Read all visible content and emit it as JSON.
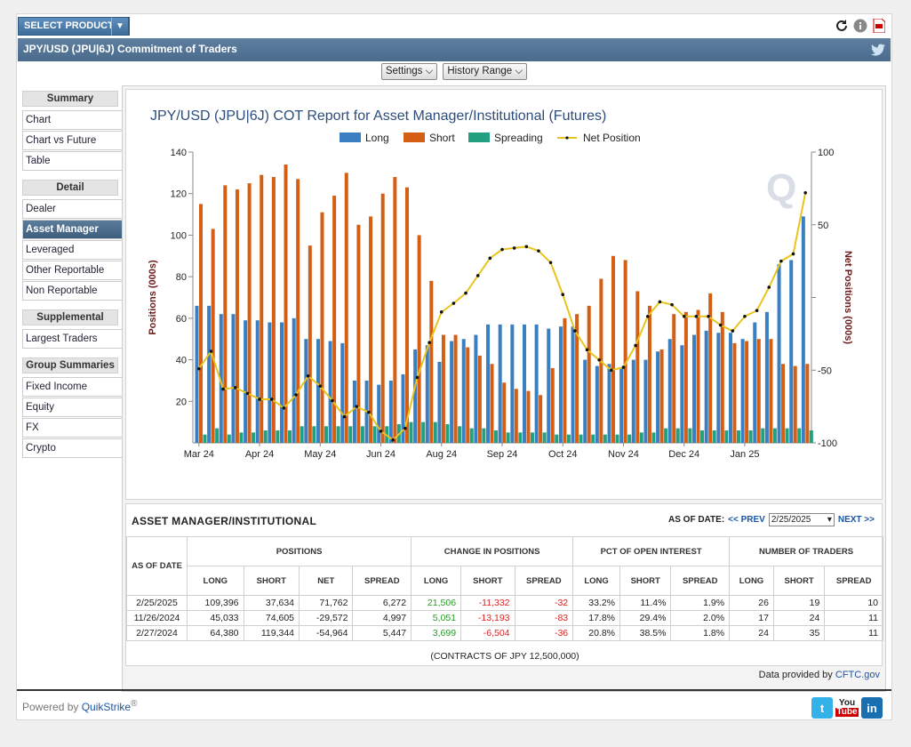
{
  "header": {
    "select_product": "SELECT PRODUCT",
    "page_title": "JPY/USD (JPU|6J) Commitment of Traders"
  },
  "controls": {
    "settings": "Settings",
    "history_range": "History Range"
  },
  "sidebar": {
    "sections": [
      {
        "title": "Summary",
        "items": [
          "Chart",
          "Chart vs Future",
          "Table"
        ]
      },
      {
        "title": "Detail",
        "items": [
          "Dealer",
          "Asset Manager",
          "Leveraged",
          "Other Reportable",
          "Non Reportable"
        ]
      },
      {
        "title": "Supplemental",
        "items": [
          "Largest Traders"
        ]
      },
      {
        "title": "Group Summaries",
        "items": [
          "Fixed Income",
          "Equity",
          "FX",
          "Crypto"
        ]
      }
    ],
    "active": "Asset Manager"
  },
  "chart_data": {
    "type": "bar",
    "title": "JPY/USD (JPU|6J) COT Report for Asset Manager/Institutional (Futures)",
    "ylabel": "Positions (000s)",
    "y2label": "Net Positions (000s)",
    "ylim": [
      0,
      140
    ],
    "y2lim": [
      -100,
      100
    ],
    "yticks": [
      20,
      40,
      60,
      80,
      100,
      120,
      140
    ],
    "y2ticks": [
      -100,
      -50,
      50,
      100
    ],
    "x_tick_labels": [
      "Mar 24",
      "Apr 24",
      "May 24",
      "Jun 24",
      "Aug 24",
      "Sep 24",
      "Oct 24",
      "Nov 24",
      "Dec 24",
      "Jan 25"
    ],
    "legend": [
      "Long",
      "Short",
      "Spreading",
      "Net Position"
    ],
    "colors": {
      "Long": "#3a7fc1",
      "Short": "#d45f14",
      "Spreading": "#22a07f",
      "Net Position": "#e8c41c"
    },
    "series": [
      {
        "name": "Long",
        "values": [
          66,
          66,
          62,
          62,
          59,
          59,
          58,
          58,
          60,
          50,
          50,
          49,
          48,
          30,
          30,
          28,
          30,
          33,
          45,
          47,
          39,
          49,
          50,
          52,
          57,
          57,
          57,
          57,
          57,
          55,
          56,
          56,
          40,
          37,
          38,
          36,
          40,
          40,
          44,
          50,
          47,
          52,
          54,
          53,
          53,
          50,
          58,
          63,
          86,
          88,
          109
        ]
      },
      {
        "name": "Short",
        "values": [
          115,
          103,
          124,
          122,
          125,
          129,
          128,
          134,
          127,
          95,
          111,
          119,
          130,
          105,
          109,
          120,
          128,
          123,
          100,
          78,
          52,
          52,
          46,
          42,
          38,
          29,
          26,
          25,
          23,
          36,
          60,
          62,
          66,
          79,
          90,
          88,
          73,
          66,
          45,
          62,
          63,
          64,
          72,
          63,
          48,
          49,
          50,
          50,
          38,
          37,
          38
        ]
      },
      {
        "name": "Spreading",
        "values": [
          4,
          7,
          4,
          5,
          5,
          6,
          6,
          6,
          8,
          8,
          8,
          8,
          8,
          8,
          8,
          8,
          9,
          10,
          10,
          10,
          9,
          8,
          7,
          7,
          6,
          5,
          5,
          5,
          5,
          4,
          4,
          4,
          4,
          4,
          4,
          4,
          5,
          5,
          7,
          7,
          7,
          6,
          6,
          6,
          6,
          6,
          7,
          7,
          7,
          7,
          6
        ]
      },
      {
        "name": "Net Position",
        "values": [
          -49,
          -37,
          -63,
          -62,
          -66,
          -70,
          -70,
          -76,
          -67,
          -54,
          -61,
          -71,
          -82,
          -75,
          -79,
          -92,
          -98,
          -90,
          -55,
          -31,
          -10,
          -4,
          3,
          15,
          27,
          33,
          34,
          35,
          32,
          24,
          2,
          -23,
          -36,
          -43,
          -50,
          -48,
          -33,
          -13,
          -3,
          -5,
          -13,
          -13,
          -13,
          -19,
          -23,
          -13,
          -9,
          7,
          25,
          30,
          72
        ]
      }
    ]
  },
  "table": {
    "title": "ASSET MANAGER/INSTITUTIONAL",
    "as_of_label": "AS OF DATE:",
    "prev": "<< PREV",
    "next": "NEXT >>",
    "selected_date": "2/25/2025",
    "group_headers": [
      "AS OF DATE",
      "POSITIONS",
      "CHANGE IN POSITIONS",
      "PCT OF OPEN INTEREST",
      "NUMBER OF TRADERS"
    ],
    "sub_headers": [
      "LONG",
      "SHORT",
      "NET",
      "SPREAD",
      "LONG",
      "SHORT",
      "SPREAD",
      "LONG",
      "SHORT",
      "SPREAD",
      "LONG",
      "SHORT",
      "SPREAD"
    ],
    "rows": [
      [
        "2/25/2025",
        "109,396",
        "37,634",
        "71,762",
        "6,272",
        "21,506",
        "-11,332",
        "-32",
        "33.2%",
        "11.4%",
        "1.9%",
        "26",
        "19",
        "10"
      ],
      [
        "11/26/2024",
        "45,033",
        "74,605",
        "-29,572",
        "4,997",
        "5,051",
        "-13,193",
        "-83",
        "17.8%",
        "29.4%",
        "2.0%",
        "17",
        "24",
        "11"
      ],
      [
        "2/27/2024",
        "64,380",
        "119,344",
        "-54,964",
        "5,447",
        "3,699",
        "-6,504",
        "-36",
        "20.8%",
        "38.5%",
        "1.8%",
        "24",
        "35",
        "11"
      ]
    ],
    "footnote": "(CONTRACTS OF JPY 12,500,000)"
  },
  "credit": {
    "prefix": "Data provided by",
    "link": "CFTC.gov"
  },
  "footer": {
    "powered_by": "Powered by",
    "brand": "QuikStrike",
    "reg": "®"
  }
}
